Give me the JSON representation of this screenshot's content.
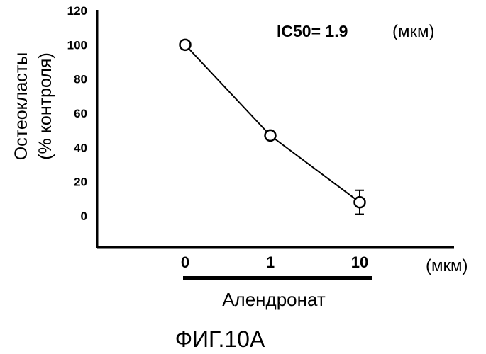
{
  "chart_data": {
    "type": "line",
    "categories": [
      "0",
      "1",
      "10"
    ],
    "series": [
      {
        "values": [
          100,
          47,
          8
        ],
        "errors": [
          0,
          0,
          7
        ]
      }
    ],
    "ylim": [
      0,
      120
    ],
    "yticks": [
      "0",
      "20",
      "40",
      "60",
      "80",
      "100",
      "120"
    ],
    "ylabel_line1": "Остеокласты",
    "ylabel_line2": "(% контроля)",
    "xlabel": "Алендронат",
    "x_unit": "(мкм)",
    "annotation": "IC50= 1.9",
    "annotation_unit": "(мкм)",
    "grid": false,
    "marker": "open-circle"
  },
  "figure_caption": "ФИГ.10А"
}
